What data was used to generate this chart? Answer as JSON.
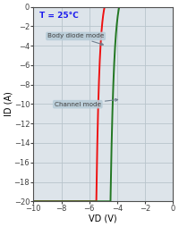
{
  "xlabel": "VD (V)",
  "ylabel": "ID (A)",
  "xlim": [
    -10,
    0
  ],
  "ylim": [
    -20,
    0
  ],
  "xticks": [
    -10,
    -8,
    -6,
    -4,
    -2,
    0
  ],
  "yticks": [
    0,
    -2,
    -4,
    -6,
    -8,
    -10,
    -12,
    -14,
    -16,
    -18,
    -20
  ],
  "temp_label": "T = 25°C",
  "temp_color": "#1a1aee",
  "body_diode_label": "Body diode mode",
  "channel_label": "Channel mode",
  "red_color": "#ee1111",
  "green_color": "#227722",
  "grid_color": "#b8c4cc",
  "bg_color": "#dde4ea",
  "red_knee_vd": -4.9,
  "green_knee_vd": -3.85,
  "label_bg_color": "#b8ccd8",
  "label_text_color": "#404040",
  "arrow_color": "#708090"
}
